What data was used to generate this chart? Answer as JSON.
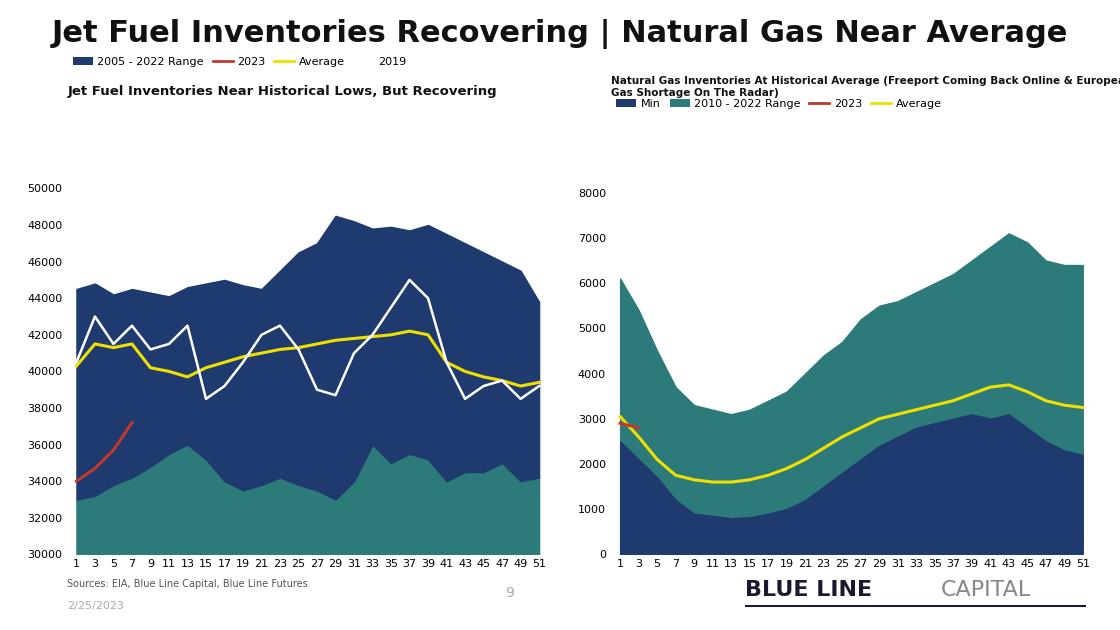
{
  "title": "Jet Fuel Inventories Recovering | Natural Gas Near Average",
  "title_fontsize": 22,
  "title_fontweight": "bold",
  "bg_color": "#ffffff",
  "jet_subtitle": "Jet Fuel Inventories Near Historical Lows, But Recovering",
  "jet_subtitle_fontsize": 9.5,
  "jet_subtitle_fontweight": "bold",
  "gas_subtitle": "Natural Gas Inventories At Historical Average (Freeport Coming Back Online & European\nGas Shortage On The Radar)",
  "gas_subtitle_fontsize": 7.5,
  "gas_subtitle_fontweight": "bold",
  "weeks": [
    1,
    3,
    5,
    7,
    9,
    11,
    13,
    15,
    17,
    19,
    21,
    23,
    25,
    27,
    29,
    31,
    33,
    35,
    37,
    39,
    41,
    43,
    45,
    47,
    49,
    51
  ],
  "jet_range_upper": [
    44500,
    44800,
    44200,
    44500,
    44300,
    44100,
    44600,
    44800,
    45000,
    44700,
    44500,
    45500,
    46500,
    47000,
    48500,
    48200,
    47800,
    47900,
    47700,
    48000,
    47500,
    47000,
    46500,
    46000,
    45500,
    43800
  ],
  "jet_range_lower": [
    33000,
    33200,
    33800,
    34200,
    34800,
    35500,
    36000,
    35200,
    34000,
    33500,
    33800,
    34200,
    33800,
    33500,
    33000,
    34000,
    36000,
    35000,
    35500,
    35200,
    34000,
    34500,
    34500,
    35000,
    34000,
    34200
  ],
  "jet_base": [
    30000,
    30000,
    30000,
    30000,
    30000,
    30000,
    30000,
    30000,
    30000,
    30000,
    30000,
    30000,
    30000,
    30000,
    30000,
    30000,
    30000,
    30000,
    30000,
    30000,
    30000,
    30000,
    30000,
    30000,
    30000,
    30000
  ],
  "jet_2023": [
    34000,
    34700,
    35700,
    37200,
    null,
    null,
    null,
    null,
    null,
    null,
    null,
    null,
    null,
    null,
    null,
    null,
    null,
    null,
    null,
    null,
    null,
    null,
    null,
    null,
    null,
    null
  ],
  "jet_avg": [
    40300,
    41500,
    41300,
    41500,
    40200,
    40000,
    39700,
    40200,
    40500,
    40800,
    41000,
    41200,
    41300,
    41500,
    41700,
    41800,
    41900,
    42000,
    42200,
    42000,
    40500,
    40000,
    39700,
    39500,
    39200,
    39400
  ],
  "jet_2019": [
    40500,
    43000,
    41500,
    42500,
    41200,
    41500,
    42500,
    38500,
    39200,
    40500,
    42000,
    42500,
    41200,
    39000,
    38700,
    41000,
    42000,
    43500,
    45000,
    44000,
    40500,
    38500,
    39200,
    39500,
    38500,
    39200
  ],
  "gas_range_upper": [
    6100,
    5400,
    4500,
    3700,
    3300,
    3200,
    3100,
    3200,
    3400,
    3600,
    4000,
    4400,
    4700,
    5200,
    5500,
    5600,
    5800,
    6000,
    6200,
    6500,
    6800,
    7100,
    6900,
    6500,
    6400,
    6400
  ],
  "gas_range_lower": [
    2500,
    2100,
    1700,
    1200,
    900,
    850,
    800,
    820,
    900,
    1000,
    1200,
    1500,
    1800,
    2100,
    2400,
    2600,
    2800,
    2900,
    3000,
    3100,
    3000,
    3100,
    2800,
    2500,
    2300,
    2200
  ],
  "gas_base": [
    0,
    0,
    0,
    0,
    0,
    0,
    0,
    0,
    0,
    0,
    0,
    0,
    0,
    0,
    0,
    0,
    0,
    0,
    0,
    0,
    0,
    0,
    0,
    0,
    0,
    0
  ],
  "gas_2023": [
    2900,
    2800,
    null,
    null,
    null,
    null,
    null,
    null,
    null,
    null,
    null,
    null,
    null,
    null,
    null,
    null,
    null,
    null,
    null,
    null,
    null,
    null,
    null,
    null,
    null,
    null
  ],
  "gas_avg": [
    3050,
    2600,
    2100,
    1750,
    1650,
    1600,
    1600,
    1650,
    1750,
    1900,
    2100,
    2350,
    2600,
    2800,
    3000,
    3100,
    3200,
    3300,
    3400,
    3550,
    3700,
    3750,
    3600,
    3400,
    3300,
    3250
  ],
  "jet_color_range": "#1e3a6e",
  "jet_color_min": "#2d7a7a",
  "jet_color_2023": "#c0392b",
  "jet_color_avg": "#f0e000",
  "jet_color_2019": "#ffffff",
  "gas_color_range_upper": "#2d7a7a",
  "gas_color_range_lower": "#1e3a6e",
  "gas_color_2023": "#c0392b",
  "gas_color_avg": "#f0e000",
  "jet_ylim": [
    30000,
    51000
  ],
  "jet_yticks": [
    30000,
    32000,
    34000,
    36000,
    38000,
    40000,
    42000,
    44000,
    46000,
    48000,
    50000
  ],
  "gas_ylim": [
    0,
    8500
  ],
  "gas_yticks": [
    0,
    1000,
    2000,
    3000,
    4000,
    5000,
    6000,
    7000,
    8000
  ],
  "footer_date": "2/25/2023",
  "footer_source": "Sources: EIA, Blue Line Capital, Blue Line Futures",
  "footer_page": "9"
}
